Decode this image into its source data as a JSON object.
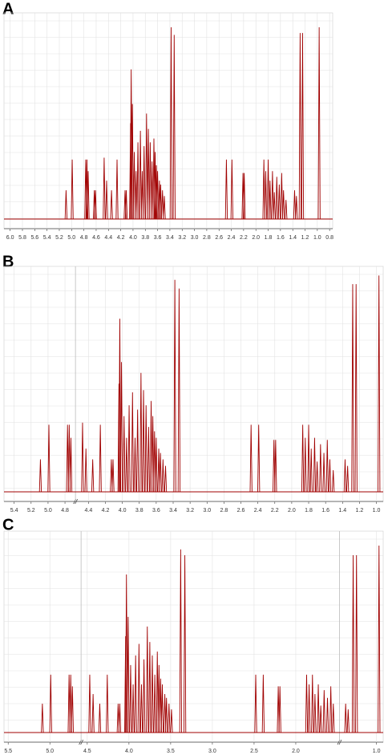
{
  "chart_data": [
    {
      "type": "spectrum",
      "label": "A",
      "color": "#a00000",
      "grid": true,
      "xlim": [
        6.1,
        0.75
      ],
      "xbreaks": [],
      "ylim": [
        0,
        105
      ],
      "xticks": [
        {
          "value": 6,
          "label": "6.0"
        },
        5.8,
        5.6,
        5.4,
        5.2,
        {
          "value": 5,
          "label": "5.0"
        },
        4.8,
        4.6,
        4.4,
        4.2,
        {
          "value": 4,
          "label": "4.0"
        },
        3.8,
        3.6,
        3.4,
        3.2,
        {
          "value": 3,
          "label": "3.0"
        },
        2.8,
        2.6,
        2.4,
        2.2,
        {
          "value": 2,
          "label": "2.0"
        },
        1.8,
        1.6,
        1.4,
        1.2,
        {
          "value": 1,
          "label": "1.0"
        },
        0.8
      ],
      "x": [
        5.09,
        4.99,
        4.77,
        4.75,
        4.73,
        4.63,
        4.61,
        4.47,
        4.43,
        4.35,
        4.26,
        4.13,
        4.11,
        4.04,
        4.03,
        4.01,
        3.98,
        3.95,
        3.92,
        3.88,
        3.85,
        3.82,
        3.78,
        3.75,
        3.72,
        3.69,
        3.66,
        3.64,
        3.62,
        3.6,
        3.57,
        3.55,
        3.52,
        3.49,
        3.38,
        3.33,
        2.48,
        2.39,
        2.21,
        2.19,
        1.87,
        1.84,
        1.8,
        1.77,
        1.73,
        1.7,
        1.66,
        1.62,
        1.58,
        1.55,
        1.51,
        1.37,
        1.34,
        1.28,
        1.24,
        0.97
      ],
      "values": [
        15,
        31,
        31,
        31,
        25,
        15,
        15,
        32,
        20,
        15,
        31,
        15,
        15,
        50,
        78,
        60,
        35,
        25,
        40,
        46,
        25,
        38,
        55,
        47,
        40,
        30,
        42,
        35,
        28,
        25,
        20,
        18,
        15,
        12,
        100,
        96,
        31,
        31,
        24,
        24,
        31,
        25,
        31,
        20,
        25,
        14,
        22,
        18,
        24,
        15,
        10,
        15,
        12,
        97,
        97,
        100
      ]
    },
    {
      "type": "spectrum",
      "label": "B",
      "color": "#a00000",
      "grid": true,
      "xlim": [
        5.52,
        0.92
      ],
      "xbreaks": [
        [
          4.7,
          4.53
        ]
      ],
      "ylim": [
        0,
        102
      ],
      "xticks": [
        5.4,
        5.2,
        {
          "value": 5,
          "label": "5.0"
        },
        4.8,
        4.4,
        4.2,
        {
          "value": 4,
          "label": "4.0"
        },
        3.8,
        3.6,
        3.4,
        3.2,
        {
          "value": 3,
          "label": "3.0"
        },
        2.8,
        2.6,
        2.4,
        2.2,
        {
          "value": 2,
          "label": "2.0"
        },
        1.8,
        1.6,
        1.4,
        1.2,
        {
          "value": 1,
          "label": "1.0"
        }
      ],
      "x": [
        5.09,
        4.99,
        4.77,
        4.75,
        4.73,
        4.47,
        4.43,
        4.35,
        4.26,
        4.13,
        4.11,
        4.04,
        4.03,
        4.01,
        3.98,
        3.95,
        3.92,
        3.88,
        3.85,
        3.82,
        3.78,
        3.75,
        3.72,
        3.69,
        3.66,
        3.64,
        3.62,
        3.6,
        3.57,
        3.55,
        3.52,
        3.49,
        3.38,
        3.33,
        2.48,
        2.39,
        2.21,
        2.19,
        1.87,
        1.84,
        1.8,
        1.77,
        1.73,
        1.7,
        1.66,
        1.62,
        1.58,
        1.55,
        1.51,
        1.37,
        1.34,
        1.28,
        1.24,
        0.97
      ],
      "values": [
        15,
        31,
        31,
        31,
        25,
        32,
        20,
        15,
        31,
        15,
        15,
        50,
        80,
        60,
        35,
        25,
        40,
        46,
        25,
        38,
        55,
        47,
        40,
        30,
        42,
        35,
        28,
        25,
        20,
        18,
        15,
        12,
        98,
        94,
        31,
        31,
        24,
        24,
        31,
        25,
        31,
        20,
        25,
        14,
        22,
        18,
        24,
        15,
        10,
        15,
        12,
        96,
        96,
        100
      ]
    },
    {
      "type": "spectrum",
      "label": "C",
      "color": "#a00000",
      "grid": true,
      "xlim": [
        5.55,
        0.92
      ],
      "xbreaks": [
        [
          4.65,
          4.55
        ],
        [
          1.5,
          1.42
        ]
      ],
      "ylim": [
        0,
        102
      ],
      "xticks": [
        5.5,
        {
          "value": 5,
          "label": "5.0"
        },
        4.5,
        {
          "value": 4,
          "label": "4.0"
        },
        3.5,
        {
          "value": 3,
          "label": "3.0"
        },
        2.5,
        {
          "value": 2,
          "label": "2.0"
        },
        {
          "value": 1,
          "label": "1.0"
        }
      ],
      "x": [
        5.09,
        4.99,
        4.77,
        4.75,
        4.73,
        4.47,
        4.43,
        4.35,
        4.26,
        4.13,
        4.11,
        4.04,
        4.03,
        4.01,
        3.98,
        3.95,
        3.92,
        3.88,
        3.85,
        3.82,
        3.78,
        3.75,
        3.72,
        3.69,
        3.66,
        3.64,
        3.62,
        3.6,
        3.57,
        3.55,
        3.52,
        3.49,
        3.38,
        3.33,
        2.48,
        2.39,
        2.21,
        2.19,
        1.87,
        1.84,
        1.8,
        1.77,
        1.73,
        1.7,
        1.66,
        1.62,
        1.58,
        1.55,
        1.37,
        1.34,
        1.28,
        1.24,
        0.97
      ],
      "values": [
        15,
        30,
        30,
        30,
        24,
        30,
        20,
        15,
        30,
        15,
        15,
        50,
        82,
        60,
        35,
        25,
        40,
        46,
        25,
        38,
        55,
        47,
        40,
        30,
        42,
        35,
        28,
        25,
        20,
        18,
        15,
        12,
        95,
        92,
        30,
        30,
        24,
        24,
        30,
        25,
        30,
        20,
        25,
        14,
        22,
        18,
        24,
        15,
        15,
        12,
        92,
        92,
        97
      ]
    }
  ]
}
